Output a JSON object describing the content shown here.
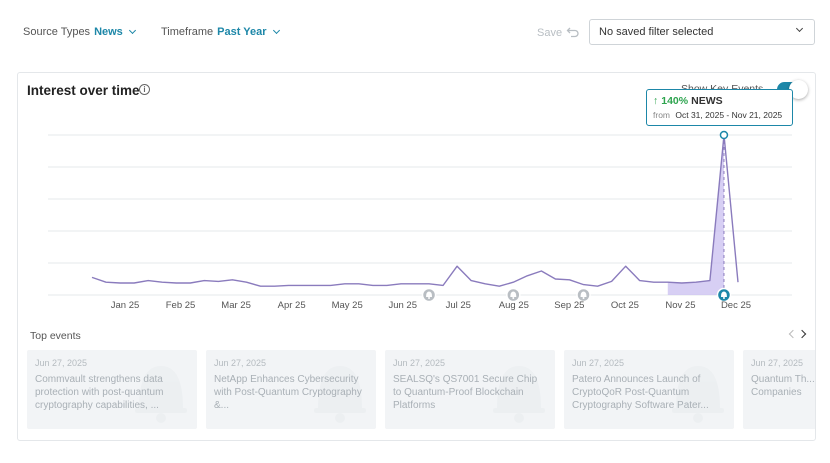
{
  "filters": {
    "source_types": {
      "label": "Source Types",
      "value": "News"
    },
    "timeframe": {
      "label": "Timeframe",
      "value": "Past Year"
    },
    "save_label": "Save",
    "saved_filter": "No saved filter selected"
  },
  "card": {
    "title": "Interest over time",
    "show_key_events_label": "Show Key Events",
    "show_key_events": true
  },
  "tooltip": {
    "percent": "140%",
    "source": "NEWS",
    "from_label": "from",
    "range": "Oct 31, 2025 - Nov 21, 2025"
  },
  "colors": {
    "accent": "#1d87a8",
    "line": "#8a7bbd",
    "area": "#c9bff0",
    "up": "#2ea44f"
  },
  "chart_data": {
    "type": "line",
    "x_tick_labels": [
      "Jan 25",
      "Feb 25",
      "Mar 25",
      "Apr 25",
      "May 25",
      "Jun 25",
      "Jul 25",
      "Aug 25",
      "Sep 25",
      "Oct 25",
      "Nov 25",
      "Dec 25"
    ],
    "ylim": [
      0,
      100
    ],
    "grid": true,
    "series": [
      {
        "values": [
          11,
          8,
          7.5,
          7.5,
          9,
          8,
          7.5,
          7.5,
          9,
          8.5,
          9.5,
          8,
          5.5,
          5.5,
          6,
          6,
          6,
          6,
          7,
          7,
          6,
          6,
          7,
          7,
          7,
          6,
          18,
          9,
          7,
          5.5,
          8,
          12,
          15,
          10,
          9.5,
          6.5,
          5.5,
          8.5,
          18,
          9,
          8,
          8,
          7.5,
          8,
          9,
          100,
          8
        ]
      }
    ],
    "highlight_range_index": [
      41,
      45
    ],
    "key_event_indices": [
      24,
      30,
      35,
      45
    ]
  },
  "top_events": {
    "title": "Top events",
    "items": [
      {
        "date": "Jun 27, 2025",
        "title": "Commvault strengthens data protection with post-quantum cryptography capabilities, ..."
      },
      {
        "date": "Jun 27, 2025",
        "title": "NetApp Enhances Cybersecurity with Post-Quantum Cryptography &..."
      },
      {
        "date": "Jun 27, 2025",
        "title": "SEALSQ's QS7001 Secure Chip to Quantum-Proof Blockchain Platforms"
      },
      {
        "date": "Jun 27, 2025",
        "title": "Patero Announces Launch of CryptoQoR Post-Quantum Cryptography Software Pater..."
      },
      {
        "date": "Jun 27, 2025",
        "title": "Quantum Th... Acceleratin... Companies"
      }
    ]
  }
}
